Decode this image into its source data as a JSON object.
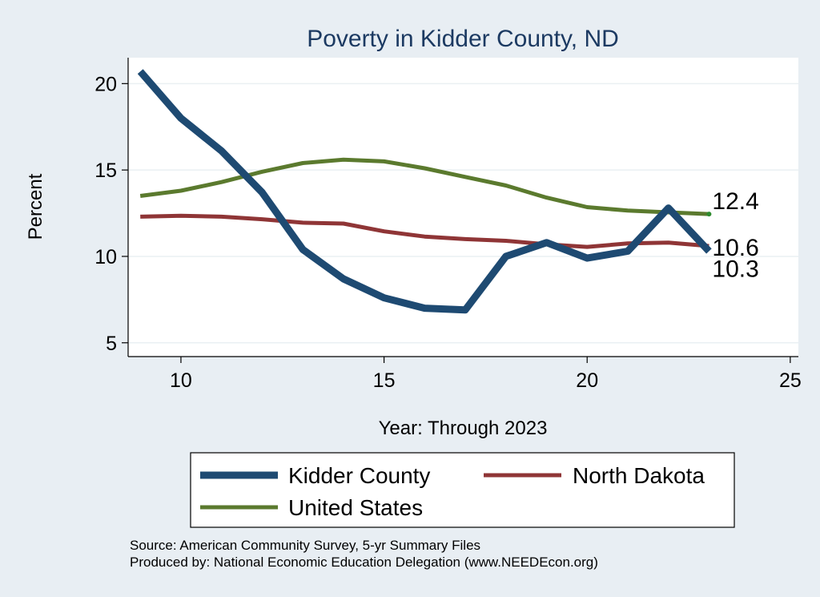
{
  "chart_data": {
    "type": "line",
    "title": "Poverty in Kidder County, ND",
    "xlabel": "Year: Through 2023",
    "ylabel": "Percent",
    "xlim": [
      8.7,
      25.2
    ],
    "ylim": [
      4.2,
      21.5
    ],
    "xticks": [
      10,
      15,
      20,
      25
    ],
    "yticks": [
      5,
      10,
      15,
      20
    ],
    "grid": true,
    "legend_position": "bottom",
    "series": [
      {
        "name": "Kidder County",
        "color": "#1e4a72",
        "x": [
          9,
          10,
          11,
          12,
          13,
          14,
          15,
          16,
          17,
          18,
          19,
          20,
          21,
          22,
          23
        ],
        "values": [
          20.7,
          18.0,
          16.1,
          13.7,
          10.4,
          8.7,
          7.6,
          7.0,
          6.9,
          10.0,
          10.8,
          9.9,
          10.3,
          12.8,
          10.3
        ],
        "end_label": "10.3"
      },
      {
        "name": "North Dakota",
        "color": "#8f3536",
        "x": [
          9,
          10,
          11,
          12,
          13,
          14,
          15,
          16,
          17,
          18,
          19,
          20,
          21,
          22,
          23
        ],
        "values": [
          12.3,
          12.35,
          12.3,
          12.15,
          11.95,
          11.9,
          11.45,
          11.15,
          11.0,
          10.9,
          10.7,
          10.55,
          10.75,
          10.8,
          10.6
        ],
        "end_label": "10.6"
      },
      {
        "name": "United States",
        "color": "#5b7a2e",
        "x": [
          9,
          10,
          11,
          12,
          13,
          14,
          15,
          16,
          17,
          18,
          19,
          20,
          21,
          22,
          23
        ],
        "values": [
          13.5,
          13.8,
          14.3,
          14.9,
          15.4,
          15.6,
          15.5,
          15.1,
          14.6,
          14.1,
          13.4,
          12.85,
          12.65,
          12.55,
          12.45
        ],
        "end_label": "12.4"
      }
    ],
    "notes": [
      "Source: American Community Survey, 5-yr Summary Files",
      "Produced by: National Economic Education Delegation (www.NEEDEcon.org)"
    ]
  }
}
